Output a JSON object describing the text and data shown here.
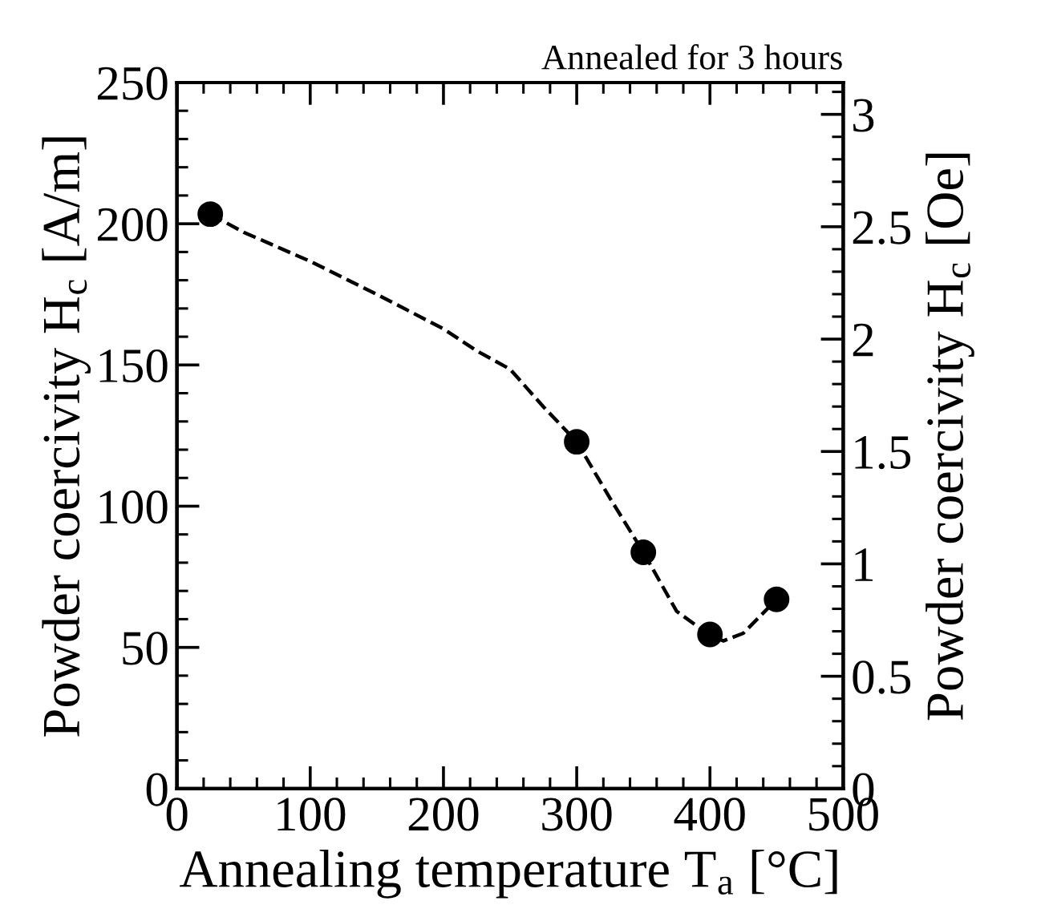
{
  "chart_data": {
    "type": "scatter",
    "title": "Annealed for 3 hours",
    "xlabel": "Annealing temperature T$_{a}$ [°C]",
    "ylabel": "Powder coercivity H$_{c}$ [A/m]",
    "y2label": "Powder coercivity H$_{c}$ [Oe]",
    "series": [
      {
        "color": "#000000",
        "marker": "circle",
        "x": [
          25,
          300,
          350,
          400,
          450
        ],
        "values": [
          203.4,
          122.8,
          83.7,
          54.6,
          67
        ]
      },
      {
        "type": "line",
        "color": "#000000",
        "line_style": "dashed",
        "marker": "none",
        "x": [
          25,
          50,
          100,
          150,
          200,
          225,
          250,
          275,
          300,
          325,
          350,
          375,
          400,
          410,
          425,
          450
        ],
        "values": [
          203.4,
          197,
          186.7,
          175,
          162.8,
          155,
          148.5,
          135.2,
          122.8,
          102.8,
          83.7,
          62.8,
          54.2,
          52.3,
          55,
          67
        ]
      }
    ],
    "xlim": [
      0,
      500
    ],
    "xticks": [
      0,
      100,
      200,
      300,
      400,
      500
    ],
    "ylim": [
      0,
      250
    ],
    "yticks": [
      0,
      50,
      100,
      150,
      200,
      250
    ],
    "y2lim": [
      0,
      3.1416
    ],
    "y2ticks": [
      0,
      0.5,
      1,
      1.5,
      2,
      2.5,
      3
    ],
    "grid": false,
    "legend": false
  }
}
